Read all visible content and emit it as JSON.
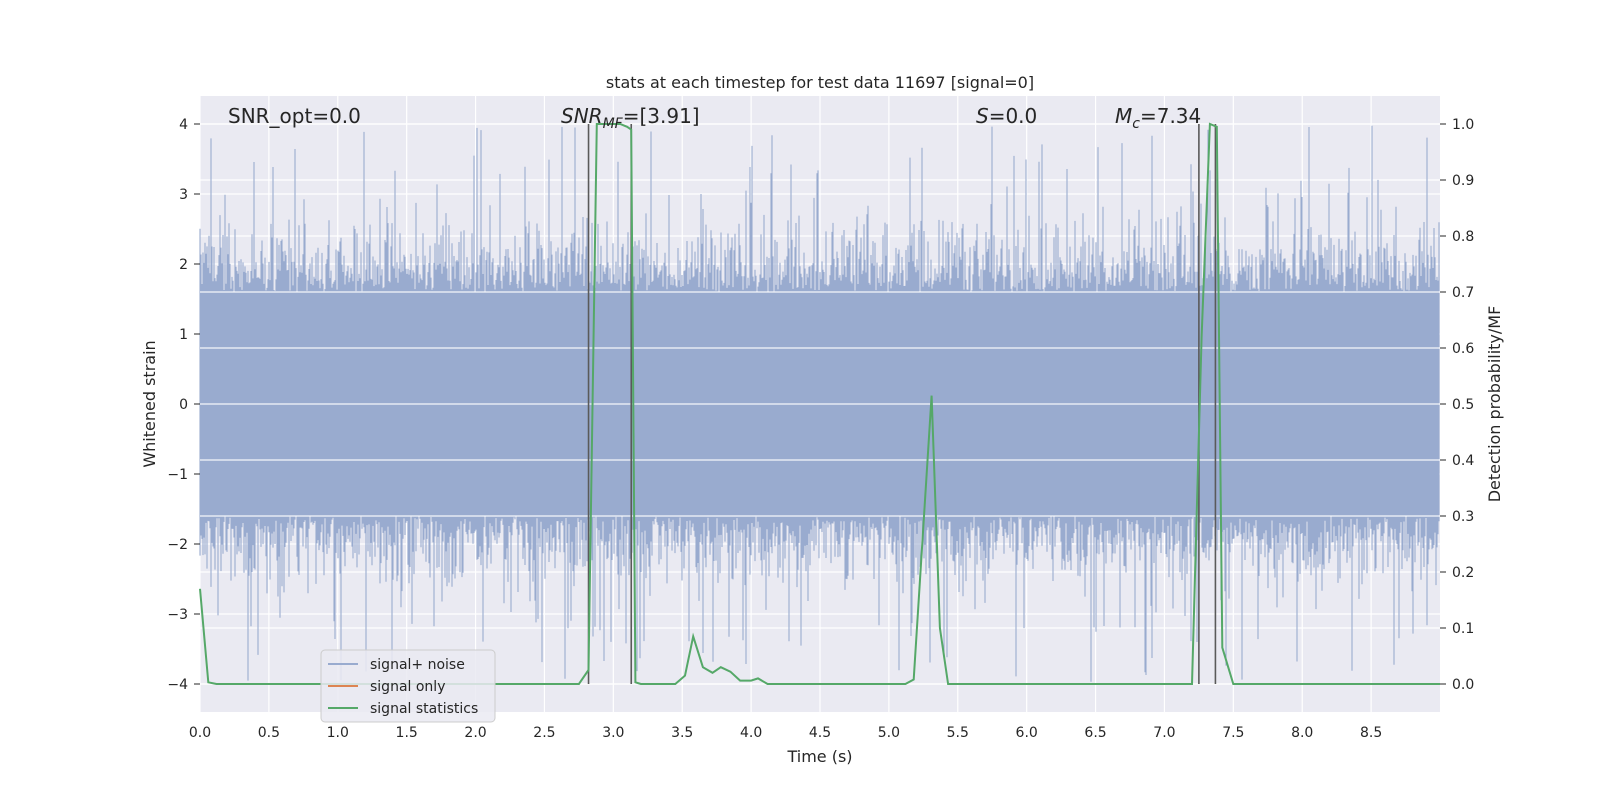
{
  "chart_data": {
    "type": "line",
    "title": "stats at each timestep for test data 11697 [signal=0]",
    "xlabel": "Time (s)",
    "ylabel_left": "Whitened strain",
    "ylabel_right": "Detection probability/MF",
    "xlim": [
      0.0,
      9.0
    ],
    "ylim_left": [
      -4.4,
      4.4
    ],
    "ylim_right": [
      -0.05,
      1.05
    ],
    "x_ticks": [
      "0.0",
      "0.5",
      "1.0",
      "1.5",
      "2.0",
      "2.5",
      "3.0",
      "3.5",
      "4.0",
      "4.5",
      "5.0",
      "5.5",
      "6.0",
      "6.5",
      "7.0",
      "7.5",
      "8.0",
      "8.5"
    ],
    "y_ticks_left": [
      "−4",
      "−3",
      "−2",
      "−1",
      "0",
      "1",
      "2",
      "3",
      "4"
    ],
    "y_ticks_right": [
      "0.0",
      "0.1",
      "0.2",
      "0.3",
      "0.4",
      "0.5",
      "0.6",
      "0.7",
      "0.8",
      "0.9",
      "1.0"
    ],
    "grid": true,
    "annotations": {
      "snr_opt": "SNR_opt=0.0",
      "snr_mf_base": "SNR",
      "snr_mf_sub": "MF",
      "snr_mf_value": "=[3.91]",
      "s_label": "S",
      "s_value": "=0.0",
      "mc_base": "M",
      "mc_sub": "c",
      "mc_value": "=7.34"
    },
    "vertical_lines_x": [
      2.82,
      3.13,
      7.25,
      7.37
    ],
    "legend": {
      "position": "lower-left",
      "entries": [
        "signal+ noise",
        "signal only",
        "signal statistics"
      ]
    },
    "colors": {
      "noise": "#99abcf",
      "signal_only": "#dd8452",
      "statistics": "#55a868",
      "vline": "#5a5a5a",
      "background": "#eaeaf2"
    },
    "series": [
      {
        "name": "signal+ noise",
        "description_values": "whitened strain noise, roughly within ±2.7 with spikes to ±4",
        "envelope": {
          "core": 1.6,
          "typical_peak": 2.4,
          "max_peak": 4.0
        }
      },
      {
        "name": "signal statistics",
        "axis": "right",
        "x": [
          0.0,
          0.06,
          0.12,
          0.5,
          1.0,
          1.5,
          2.0,
          2.5,
          2.75,
          2.82,
          2.88,
          2.95,
          3.0,
          3.05,
          3.1,
          3.13,
          3.16,
          3.2,
          3.3,
          3.45,
          3.52,
          3.58,
          3.65,
          3.72,
          3.78,
          3.85,
          3.92,
          4.0,
          4.05,
          4.12,
          4.5,
          5.0,
          5.12,
          5.18,
          5.31,
          5.37,
          5.43,
          5.5,
          6.0,
          6.5,
          7.0,
          7.2,
          7.27,
          7.33,
          7.38,
          7.42,
          7.5,
          8.0,
          8.5,
          9.0
        ],
        "values": [
          0.17,
          0.003,
          0.0,
          0.0,
          0.0,
          0.0,
          0.0,
          0.0,
          0.0,
          0.025,
          1.0,
          1.0,
          1.0,
          1.0,
          0.995,
          0.99,
          0.003,
          0.0,
          0.0,
          0.0,
          0.015,
          0.085,
          0.03,
          0.02,
          0.03,
          0.022,
          0.006,
          0.006,
          0.01,
          0.0,
          0.0,
          0.0,
          0.0,
          0.008,
          0.515,
          0.1,
          0.0,
          0.0,
          0.0,
          0.0,
          0.0,
          0.0,
          0.62,
          1.0,
          0.995,
          0.065,
          0.0,
          0.0,
          0.0,
          0.0
        ]
      }
    ]
  }
}
